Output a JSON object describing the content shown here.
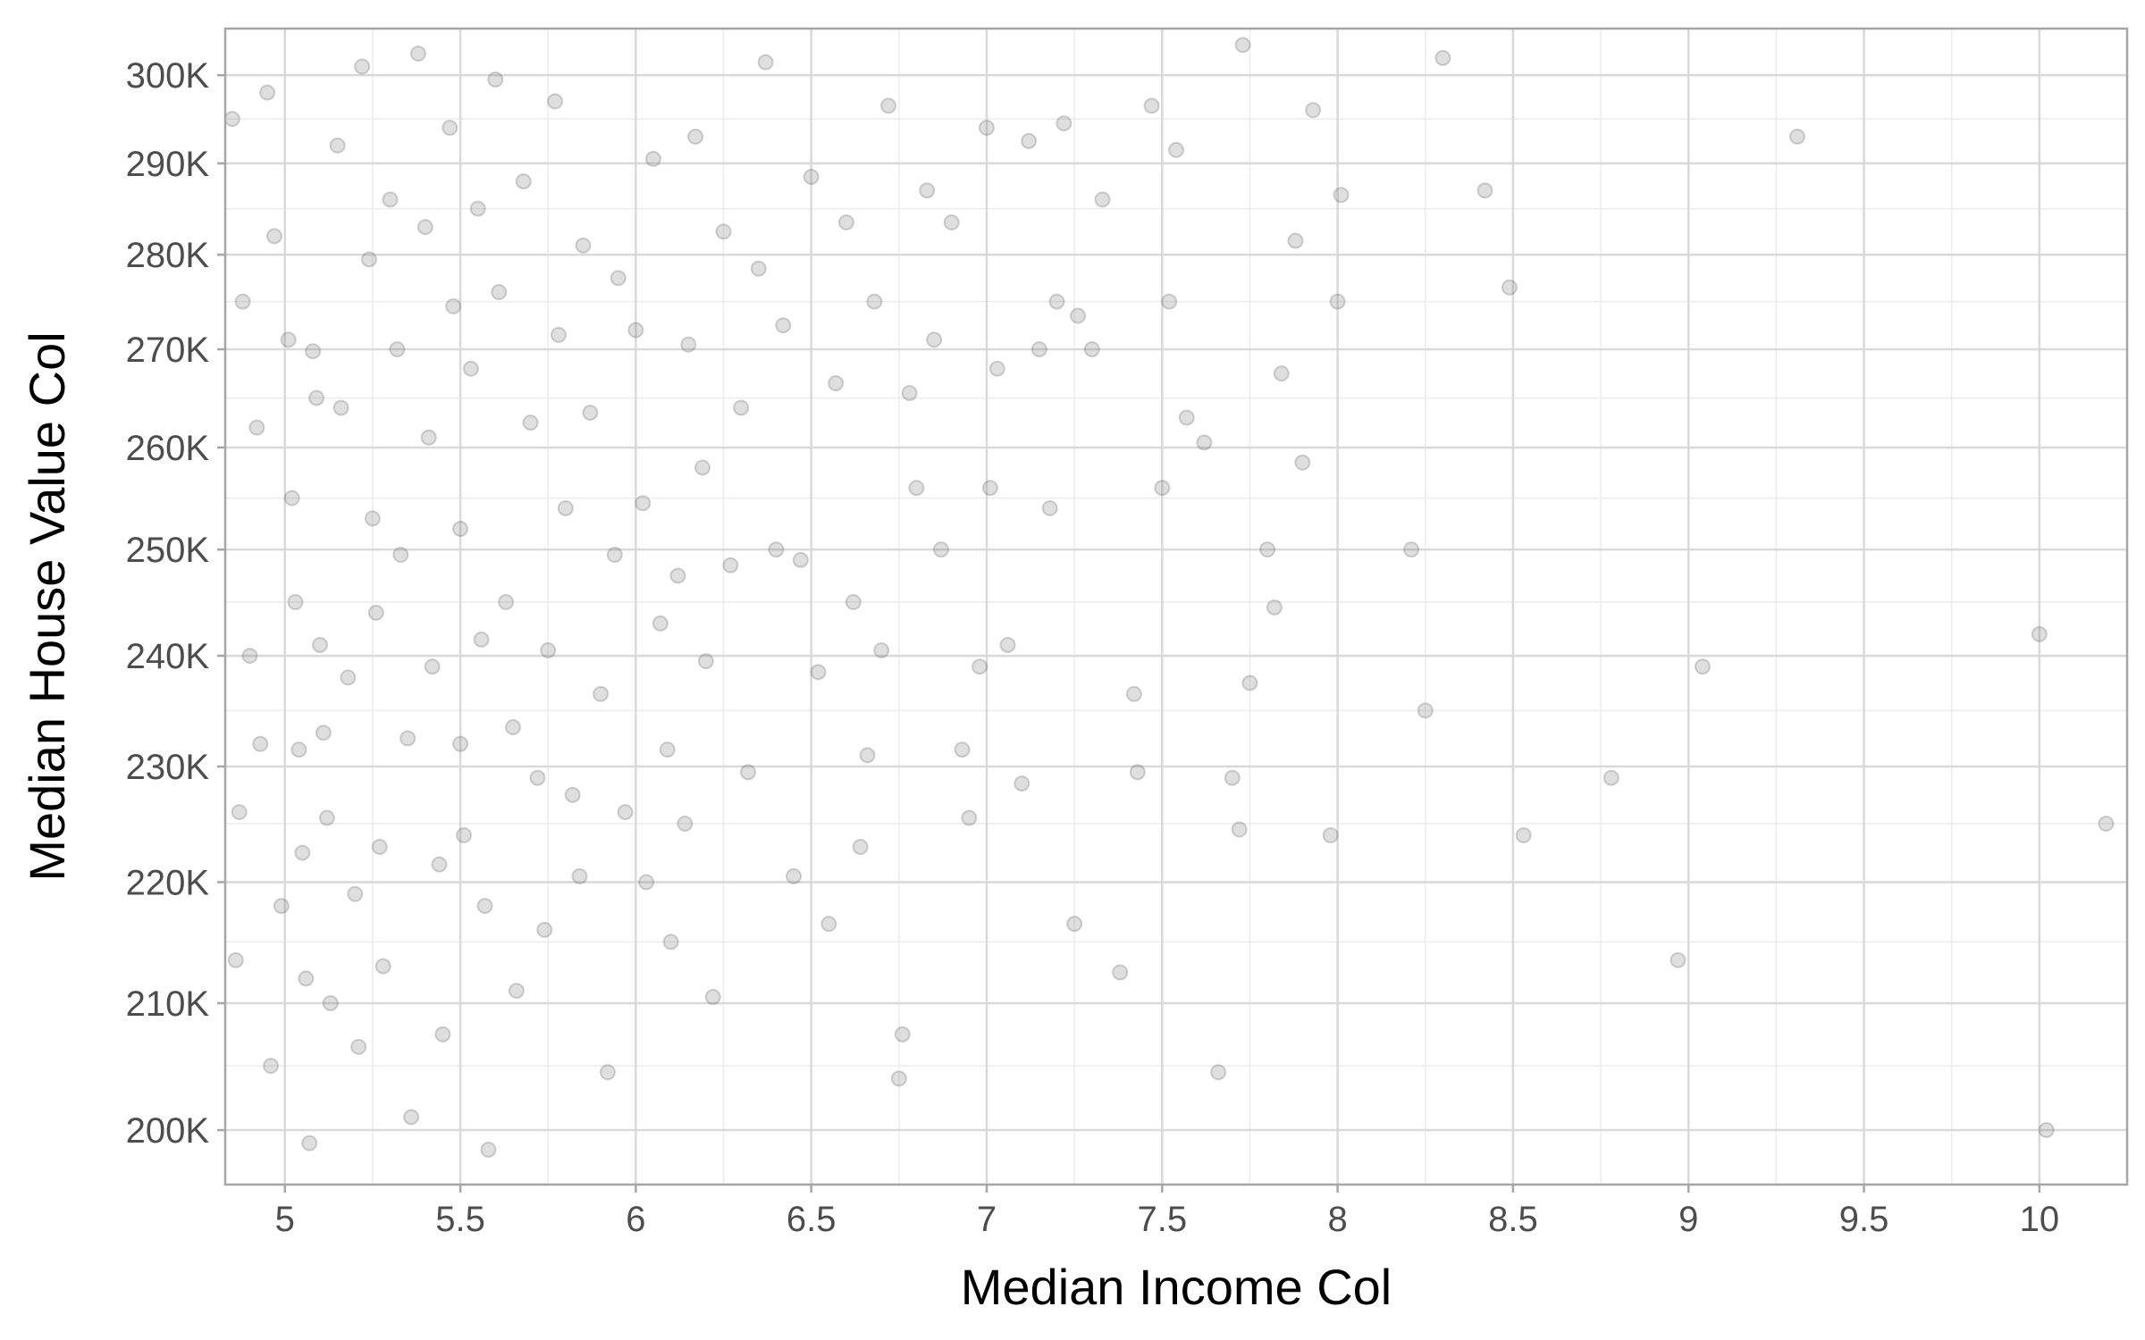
{
  "chart_data": {
    "type": "scatter",
    "title": "",
    "xlabel": "Median Income Col",
    "ylabel": "Median House Value Col",
    "xlim": [
      4.83,
      10.25
    ],
    "ylim": [
      195858,
      305424
    ],
    "y_scale": "log",
    "x_ticks": [
      {
        "value": 5,
        "label": "5"
      },
      {
        "value": 5.5,
        "label": "5.5"
      },
      {
        "value": 6,
        "label": "6"
      },
      {
        "value": 6.5,
        "label": "6.5"
      },
      {
        "value": 7,
        "label": "7"
      },
      {
        "value": 7.5,
        "label": "7.5"
      },
      {
        "value": 8,
        "label": "8"
      },
      {
        "value": 8.5,
        "label": "8.5"
      },
      {
        "value": 9,
        "label": "9"
      },
      {
        "value": 9.5,
        "label": "9.5"
      },
      {
        "value": 10,
        "label": "10"
      }
    ],
    "y_ticks": [
      {
        "value": 200000,
        "label": "200K"
      },
      {
        "value": 210000,
        "label": "210K"
      },
      {
        "value": 220000,
        "label": "220K"
      },
      {
        "value": 230000,
        "label": "230K"
      },
      {
        "value": 240000,
        "label": "240K"
      },
      {
        "value": 250000,
        "label": "250K"
      },
      {
        "value": 260000,
        "label": "260K"
      },
      {
        "value": 270000,
        "label": "270K"
      },
      {
        "value": 280000,
        "label": "280K"
      },
      {
        "value": 290000,
        "label": "290K"
      },
      {
        "value": 300000,
        "label": "300K"
      }
    ],
    "grid": true,
    "legend": "none",
    "point_color": "#808080",
    "point_stroke": "#555555",
    "point_opacity": 0.25,
    "panel_border_color": "#a6a6a6",
    "grid_major_color": "#d9d9d9",
    "grid_minor_color": "#ececec",
    "points": [
      {
        "x": 4.85,
        "y": 295000
      },
      {
        "x": 4.88,
        "y": 275000
      },
      {
        "x": 4.9,
        "y": 240000
      },
      {
        "x": 4.87,
        "y": 226000
      },
      {
        "x": 4.86,
        "y": 213500
      },
      {
        "x": 4.92,
        "y": 262000
      },
      {
        "x": 4.95,
        "y": 298000
      },
      {
        "x": 4.97,
        "y": 282000
      },
      {
        "x": 4.93,
        "y": 232000
      },
      {
        "x": 4.96,
        "y": 205000
      },
      {
        "x": 4.99,
        "y": 218000
      },
      {
        "x": 5.01,
        "y": 271000
      },
      {
        "x": 5.02,
        "y": 255000
      },
      {
        "x": 5.03,
        "y": 245000
      },
      {
        "x": 5.04,
        "y": 231500
      },
      {
        "x": 5.05,
        "y": 222500
      },
      {
        "x": 5.06,
        "y": 212000
      },
      {
        "x": 5.07,
        "y": 199000
      },
      {
        "x": 5.08,
        "y": 269800
      },
      {
        "x": 5.09,
        "y": 265000
      },
      {
        "x": 5.1,
        "y": 241000
      },
      {
        "x": 5.11,
        "y": 233000
      },
      {
        "x": 5.12,
        "y": 225500
      },
      {
        "x": 5.13,
        "y": 210000
      },
      {
        "x": 5.15,
        "y": 292000
      },
      {
        "x": 5.16,
        "y": 264000
      },
      {
        "x": 5.18,
        "y": 238000
      },
      {
        "x": 5.2,
        "y": 219000
      },
      {
        "x": 5.21,
        "y": 206500
      },
      {
        "x": 5.22,
        "y": 301000
      },
      {
        "x": 5.24,
        "y": 279500
      },
      {
        "x": 5.25,
        "y": 253000
      },
      {
        "x": 5.26,
        "y": 244000
      },
      {
        "x": 5.27,
        "y": 223000
      },
      {
        "x": 5.28,
        "y": 213000
      },
      {
        "x": 5.3,
        "y": 286000
      },
      {
        "x": 5.32,
        "y": 270000
      },
      {
        "x": 5.33,
        "y": 249500
      },
      {
        "x": 5.35,
        "y": 232500
      },
      {
        "x": 5.36,
        "y": 201000
      },
      {
        "x": 5.38,
        "y": 302500
      },
      {
        "x": 5.4,
        "y": 283000
      },
      {
        "x": 5.41,
        "y": 261000
      },
      {
        "x": 5.42,
        "y": 239000
      },
      {
        "x": 5.44,
        "y": 221500
      },
      {
        "x": 5.45,
        "y": 207500
      },
      {
        "x": 5.47,
        "y": 294000
      },
      {
        "x": 5.48,
        "y": 274500
      },
      {
        "x": 5.5,
        "y": 252000
      },
      {
        "x": 5.5,
        "y": 232000
      },
      {
        "x": 5.51,
        "y": 224000
      },
      {
        "x": 5.53,
        "y": 268000
      },
      {
        "x": 5.55,
        "y": 285000
      },
      {
        "x": 5.56,
        "y": 241500
      },
      {
        "x": 5.57,
        "y": 218000
      },
      {
        "x": 5.58,
        "y": 198500
      },
      {
        "x": 5.6,
        "y": 299500
      },
      {
        "x": 5.61,
        "y": 276000
      },
      {
        "x": 5.63,
        "y": 245000
      },
      {
        "x": 5.65,
        "y": 233500
      },
      {
        "x": 5.66,
        "y": 211000
      },
      {
        "x": 5.68,
        "y": 288000
      },
      {
        "x": 5.7,
        "y": 262500
      },
      {
        "x": 5.72,
        "y": 229000
      },
      {
        "x": 5.74,
        "y": 216000
      },
      {
        "x": 5.75,
        "y": 240500
      },
      {
        "x": 5.77,
        "y": 297000
      },
      {
        "x": 5.78,
        "y": 271500
      },
      {
        "x": 5.8,
        "y": 254000
      },
      {
        "x": 5.82,
        "y": 227500
      },
      {
        "x": 5.84,
        "y": 220500
      },
      {
        "x": 5.85,
        "y": 281000
      },
      {
        "x": 5.87,
        "y": 263500
      },
      {
        "x": 5.9,
        "y": 236500
      },
      {
        "x": 5.92,
        "y": 204500
      },
      {
        "x": 5.94,
        "y": 249500
      },
      {
        "x": 5.95,
        "y": 277500
      },
      {
        "x": 5.97,
        "y": 226000
      },
      {
        "x": 6.0,
        "y": 272000
      },
      {
        "x": 6.02,
        "y": 254500
      },
      {
        "x": 6.03,
        "y": 220000
      },
      {
        "x": 6.05,
        "y": 290500
      },
      {
        "x": 6.07,
        "y": 243000
      },
      {
        "x": 6.09,
        "y": 231500
      },
      {
        "x": 6.1,
        "y": 215000
      },
      {
        "x": 6.12,
        "y": 247500
      },
      {
        "x": 6.14,
        "y": 225000
      },
      {
        "x": 6.15,
        "y": 270500
      },
      {
        "x": 6.17,
        "y": 293000
      },
      {
        "x": 6.19,
        "y": 258000
      },
      {
        "x": 6.2,
        "y": 239500
      },
      {
        "x": 6.22,
        "y": 210500
      },
      {
        "x": 6.25,
        "y": 282500
      },
      {
        "x": 6.27,
        "y": 248500
      },
      {
        "x": 6.3,
        "y": 264000
      },
      {
        "x": 6.32,
        "y": 229500
      },
      {
        "x": 6.35,
        "y": 278500
      },
      {
        "x": 6.37,
        "y": 301500
      },
      {
        "x": 6.4,
        "y": 250000
      },
      {
        "x": 6.42,
        "y": 272500
      },
      {
        "x": 6.45,
        "y": 220500
      },
      {
        "x": 6.47,
        "y": 249000
      },
      {
        "x": 6.5,
        "y": 288500
      },
      {
        "x": 6.52,
        "y": 238500
      },
      {
        "x": 6.55,
        "y": 216500
      },
      {
        "x": 6.57,
        "y": 266500
      },
      {
        "x": 6.6,
        "y": 283500
      },
      {
        "x": 6.62,
        "y": 245000
      },
      {
        "x": 6.64,
        "y": 223000
      },
      {
        "x": 6.66,
        "y": 231000
      },
      {
        "x": 6.68,
        "y": 275000
      },
      {
        "x": 6.7,
        "y": 240500
      },
      {
        "x": 6.72,
        "y": 296500
      },
      {
        "x": 6.75,
        "y": 204000
      },
      {
        "x": 6.76,
        "y": 207500
      },
      {
        "x": 6.78,
        "y": 265500
      },
      {
        "x": 6.8,
        "y": 256000
      },
      {
        "x": 6.83,
        "y": 287000
      },
      {
        "x": 6.85,
        "y": 271000
      },
      {
        "x": 6.87,
        "y": 250000
      },
      {
        "x": 6.9,
        "y": 283500
      },
      {
        "x": 6.93,
        "y": 231500
      },
      {
        "x": 6.95,
        "y": 225500
      },
      {
        "x": 6.98,
        "y": 239000
      },
      {
        "x": 7.0,
        "y": 294000
      },
      {
        "x": 7.01,
        "y": 256000
      },
      {
        "x": 7.03,
        "y": 268000
      },
      {
        "x": 7.06,
        "y": 241000
      },
      {
        "x": 7.1,
        "y": 228500
      },
      {
        "x": 7.12,
        "y": 292500
      },
      {
        "x": 7.15,
        "y": 270000
      },
      {
        "x": 7.18,
        "y": 254000
      },
      {
        "x": 7.2,
        "y": 275000
      },
      {
        "x": 7.22,
        "y": 294500
      },
      {
        "x": 7.25,
        "y": 216500
      },
      {
        "x": 7.26,
        "y": 273500
      },
      {
        "x": 7.3,
        "y": 270000
      },
      {
        "x": 7.33,
        "y": 286000
      },
      {
        "x": 7.38,
        "y": 212500
      },
      {
        "x": 7.42,
        "y": 236500
      },
      {
        "x": 7.43,
        "y": 229500
      },
      {
        "x": 7.47,
        "y": 296500
      },
      {
        "x": 7.5,
        "y": 256000
      },
      {
        "x": 7.52,
        "y": 275000
      },
      {
        "x": 7.54,
        "y": 291500
      },
      {
        "x": 7.57,
        "y": 263000
      },
      {
        "x": 7.62,
        "y": 260500
      },
      {
        "x": 7.66,
        "y": 204500
      },
      {
        "x": 7.7,
        "y": 229000
      },
      {
        "x": 7.72,
        "y": 224500
      },
      {
        "x": 7.73,
        "y": 303500
      },
      {
        "x": 7.75,
        "y": 237500
      },
      {
        "x": 7.8,
        "y": 250000
      },
      {
        "x": 7.82,
        "y": 244500
      },
      {
        "x": 7.84,
        "y": 267500
      },
      {
        "x": 7.88,
        "y": 281500
      },
      {
        "x": 7.9,
        "y": 258500
      },
      {
        "x": 7.93,
        "y": 296000
      },
      {
        "x": 7.98,
        "y": 224000
      },
      {
        "x": 8.0,
        "y": 275000
      },
      {
        "x": 8.01,
        "y": 286500
      },
      {
        "x": 8.21,
        "y": 250000
      },
      {
        "x": 8.25,
        "y": 235000
      },
      {
        "x": 8.3,
        "y": 302000
      },
      {
        "x": 8.42,
        "y": 287000
      },
      {
        "x": 8.49,
        "y": 276500
      },
      {
        "x": 8.53,
        "y": 224000
      },
      {
        "x": 8.78,
        "y": 229000
      },
      {
        "x": 8.97,
        "y": 213500
      },
      {
        "x": 9.04,
        "y": 239000
      },
      {
        "x": 9.31,
        "y": 293000
      },
      {
        "x": 10.0,
        "y": 242000
      },
      {
        "x": 10.02,
        "y": 200000
      },
      {
        "x": 10.19,
        "y": 225000
      }
    ]
  }
}
